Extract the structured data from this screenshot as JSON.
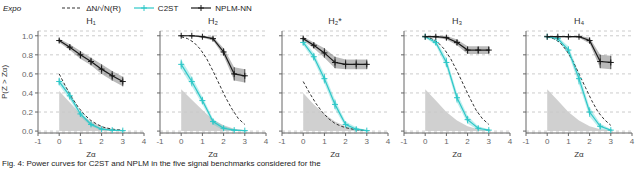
{
  "chart_data": [
    {
      "type": "line",
      "title": "H₁",
      "xlabel": "Zα",
      "ylabel": "P(Z > Zα)",
      "xlim": [
        -1,
        4
      ],
      "xticks": [
        -1,
        0,
        1,
        2,
        3,
        4
      ],
      "ylim": [
        -0.02,
        1.05
      ],
      "yticks": [
        {
          "value": 0,
          "label": "0.0"
        },
        0.2,
        0.4,
        0.6,
        0.8,
        {
          "value": 1,
          "label": "1.0"
        }
      ],
      "grid": "y",
      "series": [
        {
          "type": "area",
          "color": "#c8c8c8",
          "x": [
            0.0,
            0.5,
            1.0,
            1.5,
            2.0,
            2.5,
            3.0
          ],
          "values": [
            0.42,
            0.3,
            0.18,
            0.1,
            0.05,
            0.02,
            0.01
          ]
        },
        {
          "name": "ΔN/√N(R)",
          "type": "line",
          "line_style": "dashed",
          "color": "#333333",
          "x": [
            0.0,
            0.3,
            0.6,
            0.9,
            1.2,
            1.5,
            1.8,
            2.1,
            2.4,
            2.7,
            3.0
          ],
          "values": [
            0.6,
            0.47,
            0.35,
            0.25,
            0.17,
            0.11,
            0.07,
            0.04,
            0.025,
            0.015,
            0.01
          ]
        },
        {
          "name": "C2ST",
          "type": "line",
          "marker": "+",
          "color": "#2ec8c8",
          "x": [
            0.0,
            0.5,
            1.0,
            1.5,
            2.0,
            2.5,
            3.0
          ],
          "values": [
            0.52,
            0.37,
            0.18,
            0.07,
            0.02,
            0.01,
            0.005
          ],
          "yerr": [
            0.04,
            0.04,
            0.03,
            0.02,
            0.01,
            0.005,
            0.003
          ],
          "xerr": [
            0.06,
            0.06,
            0.06,
            0.06,
            0.06,
            0.06,
            0.06
          ]
        },
        {
          "name": "NPLM-NN",
          "type": "line",
          "marker": "+",
          "color": "#1a1a1a",
          "x": [
            0.0,
            0.5,
            1.0,
            1.5,
            2.0,
            2.5,
            3.0
          ],
          "values": [
            0.95,
            0.88,
            0.8,
            0.73,
            0.65,
            0.58,
            0.52
          ],
          "yerr": [
            0.02,
            0.03,
            0.04,
            0.04,
            0.05,
            0.05,
            0.05
          ],
          "xerr": [
            0.06,
            0.06,
            0.06,
            0.06,
            0.06,
            0.06,
            0.06
          ]
        }
      ]
    },
    {
      "type": "line",
      "title": "H₂",
      "xlabel": "Zα",
      "tick_labels": "x",
      "xlim": [
        -1,
        4
      ],
      "xticks": [
        -1,
        0,
        1,
        2,
        3,
        4
      ],
      "ylim": [
        -0.02,
        1.05
      ],
      "yticks": [
        {
          "value": 0,
          "label": "0.0"
        },
        0.2,
        0.4,
        0.6,
        0.8,
        {
          "value": 1,
          "label": "1.0"
        }
      ],
      "grid": "y",
      "series": [
        {
          "type": "area",
          "color": "#c8c8c8",
          "x": [
            0.0,
            0.5,
            1.0,
            1.5,
            2.0,
            2.5,
            3.0
          ],
          "values": [
            0.44,
            0.33,
            0.22,
            0.12,
            0.06,
            0.025,
            0.01
          ]
        },
        {
          "name": "ΔN/√N(R)",
          "type": "line",
          "line_style": "dashed",
          "color": "#333333",
          "x": [
            0.0,
            0.3,
            0.6,
            0.9,
            1.2,
            1.5,
            1.8,
            2.1,
            2.4,
            2.7,
            3.0
          ],
          "values": [
            0.99,
            0.97,
            0.93,
            0.86,
            0.76,
            0.63,
            0.49,
            0.35,
            0.23,
            0.13,
            0.07
          ]
        },
        {
          "name": "C2ST",
          "type": "line",
          "marker": "+",
          "color": "#2ec8c8",
          "x": [
            0.0,
            0.5,
            1.0,
            1.5,
            2.0,
            2.5,
            3.0
          ],
          "values": [
            0.7,
            0.52,
            0.32,
            0.1,
            0.03,
            0.01,
            0.005
          ],
          "yerr": [
            0.05,
            0.05,
            0.04,
            0.03,
            0.02,
            0.01,
            0.005
          ],
          "xerr": [
            0.06,
            0.06,
            0.06,
            0.06,
            0.06,
            0.06,
            0.06
          ]
        },
        {
          "name": "NPLM-NN",
          "type": "line",
          "marker": "+",
          "color": "#1a1a1a",
          "x": [
            0.0,
            0.5,
            1.0,
            1.5,
            2.0,
            2.5,
            3.0
          ],
          "values": [
            1.0,
            1.0,
            0.99,
            0.97,
            0.83,
            0.6,
            0.58
          ],
          "yerr": [
            0.005,
            0.005,
            0.01,
            0.02,
            0.04,
            0.07,
            0.07
          ],
          "xerr": [
            0.06,
            0.06,
            0.06,
            0.06,
            0.06,
            0.06,
            0.06
          ]
        }
      ]
    },
    {
      "type": "line",
      "title": "H₂*",
      "xlabel": "Zα",
      "tick_labels": "x",
      "xlim": [
        -1,
        4
      ],
      "xticks": [
        -1,
        0,
        1,
        2,
        3,
        4
      ],
      "ylim": [
        -0.02,
        1.05
      ],
      "yticks": [
        {
          "value": 0,
          "label": "0.0"
        },
        0.2,
        0.4,
        0.6,
        0.8,
        {
          "value": 1,
          "label": "1.0"
        }
      ],
      "grid": "y",
      "series": [
        {
          "type": "area",
          "color": "#c8c8c8",
          "x": [
            0.0,
            0.5,
            1.0,
            1.5,
            2.0,
            2.5,
            3.0
          ],
          "values": [
            0.4,
            0.28,
            0.18,
            0.1,
            0.05,
            0.02,
            0.01
          ]
        },
        {
          "name": "ΔN/√N(R)",
          "type": "line",
          "line_style": "dashed",
          "color": "#333333",
          "x": [
            0.0,
            0.3,
            0.6,
            0.9,
            1.2,
            1.5,
            1.8,
            2.1,
            2.4,
            2.7,
            3.0
          ],
          "values": [
            0.52,
            0.4,
            0.29,
            0.2,
            0.13,
            0.08,
            0.05,
            0.03,
            0.018,
            0.01,
            0.006
          ]
        },
        {
          "name": "C2ST",
          "type": "line",
          "marker": "+",
          "color": "#2ec8c8",
          "x": [
            0.0,
            0.5,
            1.0,
            1.5,
            2.0,
            2.5,
            3.0
          ],
          "values": [
            0.93,
            0.78,
            0.55,
            0.28,
            0.07,
            0.02,
            0.005
          ],
          "yerr": [
            0.03,
            0.04,
            0.05,
            0.05,
            0.03,
            0.02,
            0.005
          ],
          "xerr": [
            0.06,
            0.06,
            0.06,
            0.06,
            0.06,
            0.06,
            0.06
          ]
        },
        {
          "name": "NPLM-NN",
          "type": "line",
          "marker": "+",
          "color": "#1a1a1a",
          "x": [
            0.0,
            0.5,
            1.0,
            1.5,
            2.0,
            2.5,
            3.0
          ],
          "values": [
            0.97,
            0.9,
            0.82,
            0.72,
            0.7,
            0.7,
            0.7
          ],
          "yerr": [
            0.02,
            0.03,
            0.05,
            0.06,
            0.05,
            0.05,
            0.05
          ],
          "xerr": [
            0.06,
            0.06,
            0.06,
            0.06,
            0.06,
            0.06,
            0.06
          ]
        }
      ]
    },
    {
      "type": "line",
      "title": "H₃",
      "xlabel": "Zα",
      "tick_labels": "x",
      "xlim": [
        -1,
        4
      ],
      "xticks": [
        -1,
        0,
        1,
        2,
        3,
        4
      ],
      "ylim": [
        -0.02,
        1.05
      ],
      "yticks": [
        {
          "value": 0,
          "label": "0.0"
        },
        0.2,
        0.4,
        0.6,
        0.8,
        {
          "value": 1,
          "label": "1.0"
        }
      ],
      "grid": "y",
      "series": [
        {
          "type": "area",
          "color": "#c8c8c8",
          "x": [
            0.0,
            0.5,
            1.0,
            1.5,
            2.0,
            2.5,
            3.0
          ],
          "values": [
            0.44,
            0.32,
            0.2,
            0.11,
            0.05,
            0.02,
            0.01
          ]
        },
        {
          "name": "ΔN/√N(R)",
          "type": "line",
          "line_style": "dashed",
          "color": "#333333",
          "x": [
            0.0,
            0.3,
            0.6,
            0.9,
            1.2,
            1.5,
            1.8,
            2.1,
            2.4,
            2.7,
            3.0
          ],
          "values": [
            0.99,
            0.97,
            0.93,
            0.86,
            0.76,
            0.63,
            0.49,
            0.35,
            0.22,
            0.13,
            0.07
          ]
        },
        {
          "name": "C2ST",
          "type": "line",
          "marker": "+",
          "color": "#2ec8c8",
          "x": [
            0.0,
            0.5,
            1.0,
            1.5,
            2.0,
            2.5,
            3.0
          ],
          "values": [
            0.99,
            0.93,
            0.72,
            0.35,
            0.12,
            0.03,
            0.01
          ],
          "yerr": [
            0.01,
            0.03,
            0.05,
            0.05,
            0.04,
            0.02,
            0.01
          ],
          "xerr": [
            0.06,
            0.06,
            0.06,
            0.06,
            0.06,
            0.06,
            0.06
          ]
        },
        {
          "name": "NPLM-NN",
          "type": "line",
          "marker": "+",
          "color": "#1a1a1a",
          "x": [
            0.0,
            0.5,
            1.0,
            1.5,
            2.0,
            2.5,
            3.0
          ],
          "values": [
            0.99,
            0.99,
            0.98,
            0.93,
            0.85,
            0.85,
            0.85
          ],
          "yerr": [
            0.01,
            0.01,
            0.02,
            0.03,
            0.04,
            0.04,
            0.04
          ],
          "xerr": [
            0.06,
            0.06,
            0.06,
            0.06,
            0.06,
            0.06,
            0.06
          ]
        }
      ]
    },
    {
      "type": "line",
      "title": "H₄",
      "xlabel": "Zα",
      "tick_labels": "x",
      "xlim": [
        -1,
        4
      ],
      "xticks": [
        -1,
        0,
        1,
        2,
        3,
        4
      ],
      "ylim": [
        -0.02,
        1.05
      ],
      "yticks": [
        {
          "value": 0,
          "label": "0.0"
        },
        0.2,
        0.4,
        0.6,
        0.8,
        {
          "value": 1,
          "label": "1.0"
        }
      ],
      "grid": "y",
      "series": [
        {
          "type": "area",
          "color": "#c8c8c8",
          "x": [
            0.0,
            0.5,
            1.0,
            1.5,
            2.0,
            2.5,
            3.0
          ],
          "values": [
            0.44,
            0.32,
            0.2,
            0.11,
            0.05,
            0.02,
            0.01
          ]
        },
        {
          "name": "ΔN/√N(R)",
          "type": "line",
          "line_style": "dashed",
          "color": "#333333",
          "x": [
            0.0,
            0.3,
            0.6,
            0.9,
            1.2,
            1.5,
            1.8,
            2.1,
            2.4,
            2.7,
            3.0
          ],
          "values": [
            0.99,
            0.97,
            0.93,
            0.85,
            0.74,
            0.6,
            0.46,
            0.32,
            0.2,
            0.12,
            0.06
          ]
        },
        {
          "name": "C2ST",
          "type": "line",
          "marker": "+",
          "color": "#2ec8c8",
          "x": [
            0.0,
            0.5,
            1.0,
            1.5,
            2.0,
            2.5,
            3.0
          ],
          "values": [
            0.99,
            0.97,
            0.85,
            0.55,
            0.2,
            0.05,
            0.01
          ],
          "yerr": [
            0.01,
            0.02,
            0.04,
            0.06,
            0.05,
            0.03,
            0.01
          ],
          "xerr": [
            0.06,
            0.06,
            0.06,
            0.06,
            0.06,
            0.06,
            0.06
          ]
        },
        {
          "name": "NPLM-NN",
          "type": "line",
          "marker": "+",
          "color": "#1a1a1a",
          "x": [
            0.0,
            0.5,
            1.0,
            1.5,
            2.0,
            2.5,
            3.0
          ],
          "values": [
            0.99,
            0.99,
            0.99,
            0.99,
            0.95,
            0.73,
            0.72
          ],
          "yerr": [
            0.005,
            0.005,
            0.005,
            0.01,
            0.03,
            0.07,
            0.07
          ],
          "xerr": [
            0.06,
            0.06,
            0.06,
            0.06,
            0.06,
            0.06,
            0.06
          ]
        }
      ]
    }
  ],
  "legend": "upper left",
  "annotations": [
    "Expo",
    "Fig. 4:  Power curves for C2ST and NPLM in the five signal benchmarks considered for the"
  ]
}
